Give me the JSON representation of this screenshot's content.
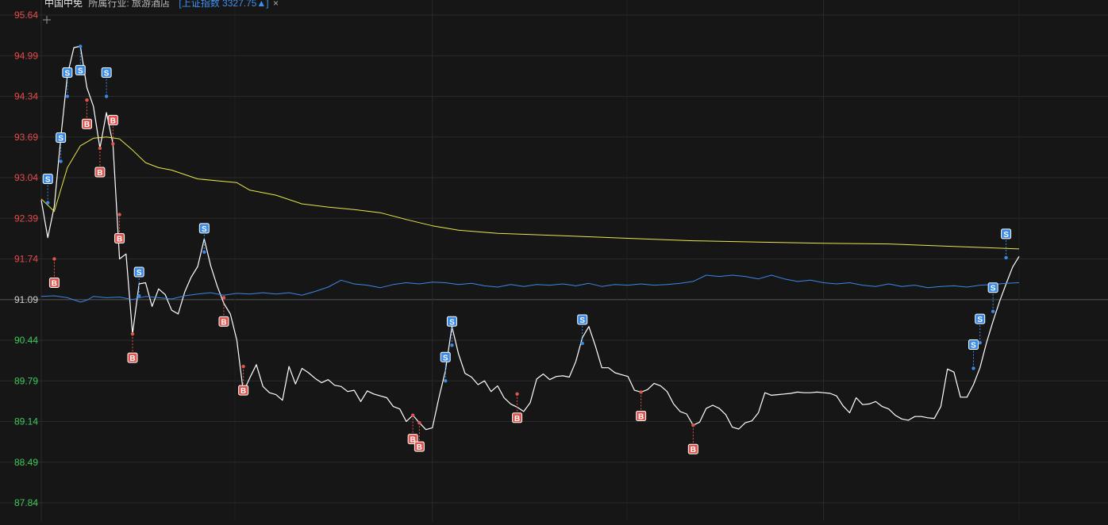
{
  "header": {
    "stock_name": "中国中免",
    "industry": "所属行业: 旅游酒店",
    "index_info": "[上证指数 3327.75▲]",
    "close_glyph": "×"
  },
  "colors": {
    "background": "#161616",
    "grid": "#2a2a2a",
    "price_line": "#ffffff",
    "avg_line": "#e8e84a",
    "index_line": "#3b86e6",
    "axis_up": "#e84a4a",
    "axis_down": "#3ec95a",
    "axis_mid": "#d0d0d0",
    "buy_marker": "#e0554d",
    "sell_marker": "#3a8ae8"
  },
  "chart_data": {
    "type": "line",
    "title": "",
    "xlabel": "",
    "ylabel": "",
    "ylim": [
      87.84,
      95.64
    ],
    "xlim": [
      0,
      150
    ],
    "reference_price": 91.09,
    "y_ticks": [
      "95.64",
      "94.99",
      "94.34",
      "93.69",
      "93.04",
      "92.39",
      "91.74",
      "91.09",
      "90.44",
      "89.79",
      "89.14",
      "88.49",
      "87.84"
    ],
    "x_grid": [
      0,
      60,
      120
    ],
    "series": [
      {
        "key": "price",
        "x": [
          0,
          1,
          2,
          3,
          4,
          5,
          6,
          7,
          8,
          9,
          10,
          11,
          12,
          13,
          14,
          15,
          16,
          17,
          18,
          19,
          20,
          21,
          22,
          23,
          24,
          25,
          26,
          27,
          28,
          29,
          30,
          31,
          32,
          33,
          34,
          35,
          36,
          37,
          38,
          39,
          40,
          41,
          42,
          43,
          44,
          45,
          46,
          47,
          48,
          49,
          50,
          51,
          52,
          53,
          54,
          55,
          56,
          57,
          58,
          59,
          60,
          61,
          62,
          63,
          64,
          65,
          66,
          67,
          68,
          69,
          70,
          71,
          72,
          73,
          74,
          75,
          76,
          77,
          78,
          79,
          80,
          81,
          82,
          83,
          84,
          85,
          86,
          87,
          88,
          89,
          90,
          91,
          92,
          93,
          94,
          95,
          96,
          97,
          98,
          99,
          100,
          101,
          102,
          103,
          104,
          105,
          106,
          107,
          108,
          109,
          110,
          111,
          112,
          113,
          114,
          115,
          116,
          117,
          118,
          119,
          120,
          121,
          122,
          123,
          124,
          125,
          126,
          127,
          128,
          129,
          130,
          131,
          132,
          133,
          134,
          135,
          136,
          137,
          138,
          139,
          140,
          141,
          142,
          143,
          144,
          145,
          146,
          147,
          148,
          149,
          150
        ],
        "values": [
          92.68,
          92.08,
          92.58,
          93.68,
          94.68,
          95.12,
          95.14,
          94.48,
          94.18,
          93.51,
          94.08,
          93.58,
          91.74,
          91.82,
          90.54,
          91.34,
          91.36,
          90.98,
          91.26,
          91.17,
          90.92,
          90.86,
          91.21,
          91.45,
          91.62,
          92.06,
          91.63,
          91.3,
          91.03,
          90.86,
          90.44,
          89.61,
          89.84,
          90.05,
          89.7,
          89.6,
          89.57,
          89.48,
          90.02,
          89.74,
          89.99,
          89.92,
          89.83,
          89.76,
          89.81,
          89.72,
          89.7,
          89.62,
          89.64,
          89.46,
          89.63,
          89.58,
          89.55,
          89.52,
          89.38,
          89.34,
          89.14,
          89.24,
          89.12,
          89.01,
          89.04,
          89.52,
          89.95,
          90.66,
          90.22,
          89.91,
          89.85,
          89.73,
          89.79,
          89.62,
          89.71,
          89.52,
          89.42,
          89.37,
          89.3,
          89.44,
          89.82,
          89.9,
          89.81,
          89.86,
          89.87,
          89.85,
          90.1,
          90.48,
          90.66,
          90.35,
          90.0,
          90.0,
          89.92,
          89.89,
          89.86,
          89.64,
          89.61,
          89.65,
          89.75,
          89.71,
          89.62,
          89.42,
          89.3,
          89.26,
          89.08,
          89.13,
          89.35,
          89.4,
          89.35,
          89.25,
          89.05,
          89.02,
          89.12,
          89.15,
          89.28,
          89.6,
          89.56,
          89.57,
          89.58,
          89.59,
          89.61,
          89.6,
          89.6,
          89.61,
          89.6,
          89.59,
          89.55,
          89.39,
          89.28,
          89.52,
          89.41,
          89.42,
          89.46,
          89.38,
          89.34,
          89.24,
          89.18,
          89.16,
          89.22,
          89.22,
          89.2,
          89.19,
          89.38,
          89.98,
          89.93,
          89.53,
          89.53,
          89.73,
          90.0,
          90.4,
          90.74,
          91.06,
          91.34,
          91.61,
          91.78
        ]
      },
      {
        "key": "average",
        "x": [
          0,
          2,
          4,
          6,
          8,
          10,
          12,
          14,
          16,
          18,
          20,
          24,
          28,
          30,
          32,
          36,
          40,
          44,
          48,
          52,
          56,
          60,
          64,
          70,
          80,
          90,
          100,
          110,
          120,
          130,
          140,
          150
        ],
        "values": [
          92.7,
          92.5,
          93.2,
          93.55,
          93.67,
          93.69,
          93.66,
          93.48,
          93.28,
          93.2,
          93.16,
          93.02,
          92.98,
          92.96,
          92.84,
          92.76,
          92.62,
          92.57,
          92.53,
          92.48,
          92.37,
          92.27,
          92.2,
          92.15,
          92.11,
          92.07,
          92.03,
          92.01,
          91.99,
          91.98,
          91.94,
          91.9
        ]
      },
      {
        "key": "index",
        "x": [
          0,
          2,
          4,
          6,
          7,
          8,
          10,
          12,
          14,
          16,
          18,
          20,
          22,
          24,
          26,
          28,
          30,
          32,
          34,
          36,
          38,
          40,
          42,
          44,
          46,
          48,
          50,
          52,
          54,
          56,
          58,
          60,
          62,
          64,
          66,
          68,
          70,
          72,
          74,
          76,
          78,
          80,
          82,
          84,
          86,
          88,
          90,
          92,
          94,
          96,
          98,
          100,
          102,
          104,
          106,
          108,
          110,
          112,
          114,
          116,
          118,
          120,
          122,
          124,
          126,
          128,
          130,
          132,
          134,
          136,
          138,
          140,
          142,
          144,
          146,
          148,
          150
        ],
        "values": [
          91.14,
          91.15,
          91.12,
          91.05,
          91.08,
          91.14,
          91.12,
          91.13,
          91.09,
          91.14,
          91.12,
          91.1,
          91.15,
          91.18,
          91.2,
          91.16,
          91.19,
          91.18,
          91.2,
          91.18,
          91.2,
          91.16,
          91.22,
          91.29,
          91.4,
          91.34,
          91.32,
          91.28,
          91.33,
          91.36,
          91.34,
          91.37,
          91.36,
          91.33,
          91.35,
          91.31,
          91.29,
          91.33,
          91.3,
          91.33,
          91.32,
          91.34,
          91.31,
          91.35,
          91.3,
          91.33,
          91.32,
          91.34,
          91.32,
          91.33,
          91.35,
          91.38,
          91.48,
          91.46,
          91.48,
          91.46,
          91.42,
          91.48,
          91.42,
          91.38,
          91.4,
          91.36,
          91.34,
          91.36,
          91.32,
          91.3,
          91.34,
          91.3,
          91.32,
          91.28,
          91.3,
          91.31,
          91.29,
          91.32,
          91.33,
          91.35,
          91.36
        ]
      }
    ],
    "buy_markers": [
      {
        "x": 2,
        "y": 91.74,
        "label": "B",
        "dir": "down"
      },
      {
        "x": 7,
        "y": 94.28,
        "label": "B",
        "dir": "down"
      },
      {
        "x": 9,
        "y": 93.51,
        "label": "B",
        "dir": "down"
      },
      {
        "x": 11,
        "y": 93.58,
        "label": "B",
        "dir": "up"
      },
      {
        "x": 12,
        "y": 92.45,
        "label": "B",
        "dir": "down"
      },
      {
        "x": 14,
        "y": 90.54,
        "label": "B",
        "dir": "down"
      },
      {
        "x": 28,
        "y": 91.12,
        "label": "B",
        "dir": "down"
      },
      {
        "x": 31,
        "y": 90.02,
        "label": "B",
        "dir": "down"
      },
      {
        "x": 57,
        "y": 89.24,
        "label": "B",
        "dir": "down"
      },
      {
        "x": 58,
        "y": 89.12,
        "label": "B",
        "dir": "down"
      },
      {
        "x": 73,
        "y": 89.58,
        "label": "B",
        "dir": "down"
      },
      {
        "x": 92,
        "y": 89.61,
        "label": "B",
        "dir": "down"
      },
      {
        "x": 100,
        "y": 89.08,
        "label": "B",
        "dir": "down"
      }
    ],
    "sell_markers": [
      {
        "x": 1,
        "y": 92.64,
        "label": "S",
        "dir": "up"
      },
      {
        "x": 3,
        "y": 93.3,
        "label": "S",
        "dir": "up"
      },
      {
        "x": 4,
        "y": 94.34,
        "label": "S",
        "dir": "up"
      },
      {
        "x": 6,
        "y": 95.14,
        "label": "S",
        "dir": "down"
      },
      {
        "x": 10,
        "y": 94.34,
        "label": "S",
        "dir": "up"
      },
      {
        "x": 15,
        "y": 91.15,
        "label": "S",
        "dir": "up"
      },
      {
        "x": 25,
        "y": 91.85,
        "label": "S",
        "dir": "up"
      },
      {
        "x": 62,
        "y": 89.79,
        "label": "S",
        "dir": "up"
      },
      {
        "x": 63,
        "y": 90.36,
        "label": "S",
        "dir": "up"
      },
      {
        "x": 83,
        "y": 90.39,
        "label": "S",
        "dir": "up"
      },
      {
        "x": 143,
        "y": 89.99,
        "label": "S",
        "dir": "up"
      },
      {
        "x": 144,
        "y": 90.4,
        "label": "S",
        "dir": "up"
      },
      {
        "x": 146,
        "y": 90.9,
        "label": "S",
        "dir": "up"
      },
      {
        "x": 148,
        "y": 91.76,
        "label": "S",
        "dir": "up"
      }
    ]
  }
}
